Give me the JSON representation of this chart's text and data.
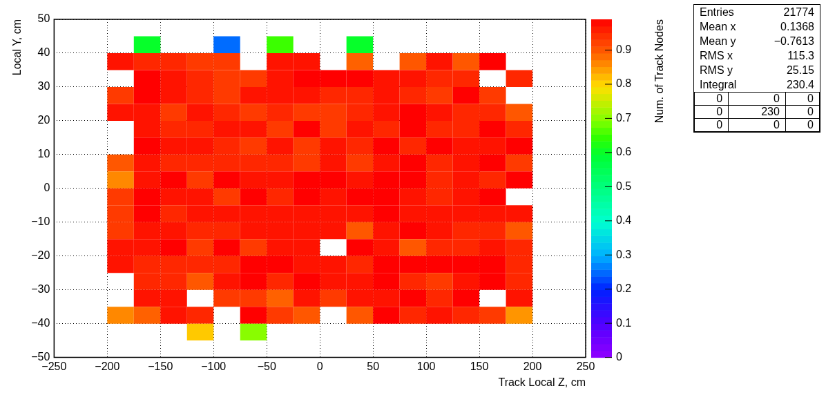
{
  "chart_data": {
    "type": "heatmap",
    "xlabel": "Track Local Z, cm",
    "ylabel": "Local Y, cm",
    "clabel": "Num. of Track Nodes",
    "x": [
      -187.5,
      -162.5,
      -137.5,
      -112.5,
      -87.5,
      -62.5,
      -37.5,
      -12.5,
      12.5,
      37.5,
      62.5,
      87.5,
      112.5,
      137.5,
      162.5,
      187.5
    ],
    "y": [
      42.5,
      37.5,
      32.5,
      27.5,
      22.5,
      17.5,
      12.5,
      7.5,
      2.5,
      -2.5,
      -7.5,
      -12.5,
      -17.5,
      -22.5,
      -27.5,
      -32.5,
      -37.5,
      -42.5
    ],
    "xlim": [
      -250,
      250
    ],
    "xticks": [
      -250,
      -200,
      -150,
      -100,
      -50,
      0,
      50,
      100,
      150,
      200,
      250
    ],
    "ylim": [
      -50,
      50
    ],
    "yticks": [
      -50,
      -40,
      -30,
      -20,
      -10,
      0,
      10,
      20,
      30,
      40,
      50
    ],
    "clim": [
      0,
      0.99
    ],
    "cticks": [
      0,
      0.1,
      0.2,
      0.3,
      0.4,
      0.5,
      0.6,
      0.7,
      0.8,
      0.9
    ],
    "grid": true,
    "cells": [
      [
        null,
        0.6,
        null,
        null,
        0.25,
        null,
        0.65,
        null,
        null,
        0.6,
        null,
        null,
        null,
        null,
        null,
        null
      ],
      [
        0.97,
        0.95,
        0.95,
        0.93,
        0.93,
        null,
        0.97,
        0.97,
        null,
        0.89,
        null,
        0.9,
        0.97,
        0.9,
        0.99,
        null
      ],
      [
        null,
        0.99,
        0.97,
        0.95,
        0.93,
        0.93,
        0.97,
        0.99,
        0.99,
        0.99,
        0.97,
        0.97,
        0.95,
        0.95,
        null,
        0.95
      ],
      [
        0.93,
        0.99,
        0.97,
        0.95,
        0.93,
        0.97,
        0.97,
        0.97,
        0.95,
        0.95,
        0.97,
        0.95,
        0.93,
        0.99,
        0.93,
        null
      ],
      [
        0.97,
        0.97,
        0.93,
        0.97,
        0.95,
        0.93,
        0.95,
        0.93,
        0.93,
        0.95,
        0.97,
        0.99,
        0.97,
        0.95,
        0.95,
        0.9
      ],
      [
        null,
        0.97,
        0.95,
        0.95,
        0.97,
        0.97,
        0.93,
        0.99,
        0.93,
        0.97,
        0.95,
        0.99,
        0.95,
        0.95,
        0.99,
        0.95
      ],
      [
        null,
        0.99,
        0.97,
        0.97,
        0.95,
        0.93,
        0.97,
        0.93,
        0.97,
        0.95,
        0.99,
        0.95,
        0.99,
        0.97,
        0.97,
        0.99
      ],
      [
        0.9,
        0.97,
        0.95,
        0.95,
        0.95,
        0.95,
        0.95,
        0.93,
        0.97,
        0.93,
        0.97,
        0.99,
        0.95,
        0.97,
        0.99,
        0.93
      ],
      [
        0.86,
        0.97,
        0.99,
        0.93,
        0.99,
        0.97,
        0.97,
        0.99,
        0.99,
        0.97,
        0.99,
        0.99,
        0.95,
        0.97,
        0.95,
        0.99
      ],
      [
        0.93,
        0.99,
        0.97,
        0.97,
        0.93,
        0.99,
        0.95,
        0.99,
        0.97,
        0.99,
        0.99,
        0.97,
        0.95,
        0.97,
        0.99,
        null
      ],
      [
        0.93,
        0.99,
        0.95,
        0.97,
        0.97,
        0.97,
        0.97,
        0.97,
        0.97,
        0.97,
        0.99,
        0.97,
        0.97,
        0.97,
        0.97,
        0.97
      ],
      [
        0.93,
        0.97,
        0.97,
        0.95,
        0.95,
        0.97,
        0.97,
        0.97,
        0.97,
        0.9,
        0.97,
        0.99,
        0.97,
        0.95,
        0.95,
        0.9
      ],
      [
        0.97,
        0.97,
        0.99,
        0.93,
        0.99,
        0.93,
        0.97,
        0.97,
        null,
        0.99,
        0.97,
        0.9,
        0.95,
        0.95,
        0.97,
        0.95
      ],
      [
        0.97,
        0.95,
        0.95,
        0.95,
        0.95,
        0.99,
        0.99,
        0.97,
        0.97,
        0.95,
        0.99,
        0.99,
        0.99,
        0.99,
        0.99,
        0.95
      ],
      [
        null,
        0.95,
        0.95,
        0.9,
        0.97,
        0.99,
        0.95,
        0.99,
        0.97,
        0.97,
        0.99,
        0.95,
        0.93,
        0.97,
        0.99,
        0.95
      ],
      [
        null,
        0.97,
        0.97,
        null,
        0.93,
        0.93,
        0.89,
        0.97,
        0.93,
        0.97,
        0.97,
        0.99,
        0.95,
        0.99,
        null,
        0.97
      ],
      [
        0.86,
        0.89,
        0.97,
        0.95,
        null,
        0.99,
        0.93,
        0.9,
        null,
        0.9,
        0.99,
        0.95,
        0.97,
        0.95,
        0.93,
        0.85
      ],
      [
        null,
        null,
        null,
        0.81,
        null,
        0.7,
        null,
        null,
        null,
        null,
        null,
        null,
        null,
        null,
        null,
        null
      ]
    ],
    "annotations": [
      "Entries",
      "21774",
      "Mean x",
      "0.1368",
      "Mean y",
      "−0.7613",
      "RMS x",
      "115.3",
      "RMS y",
      "25.15",
      "Integral",
      "230.4",
      "0",
      "0",
      "0",
      "0",
      "230",
      "0",
      "0",
      "0",
      "0"
    ]
  }
}
